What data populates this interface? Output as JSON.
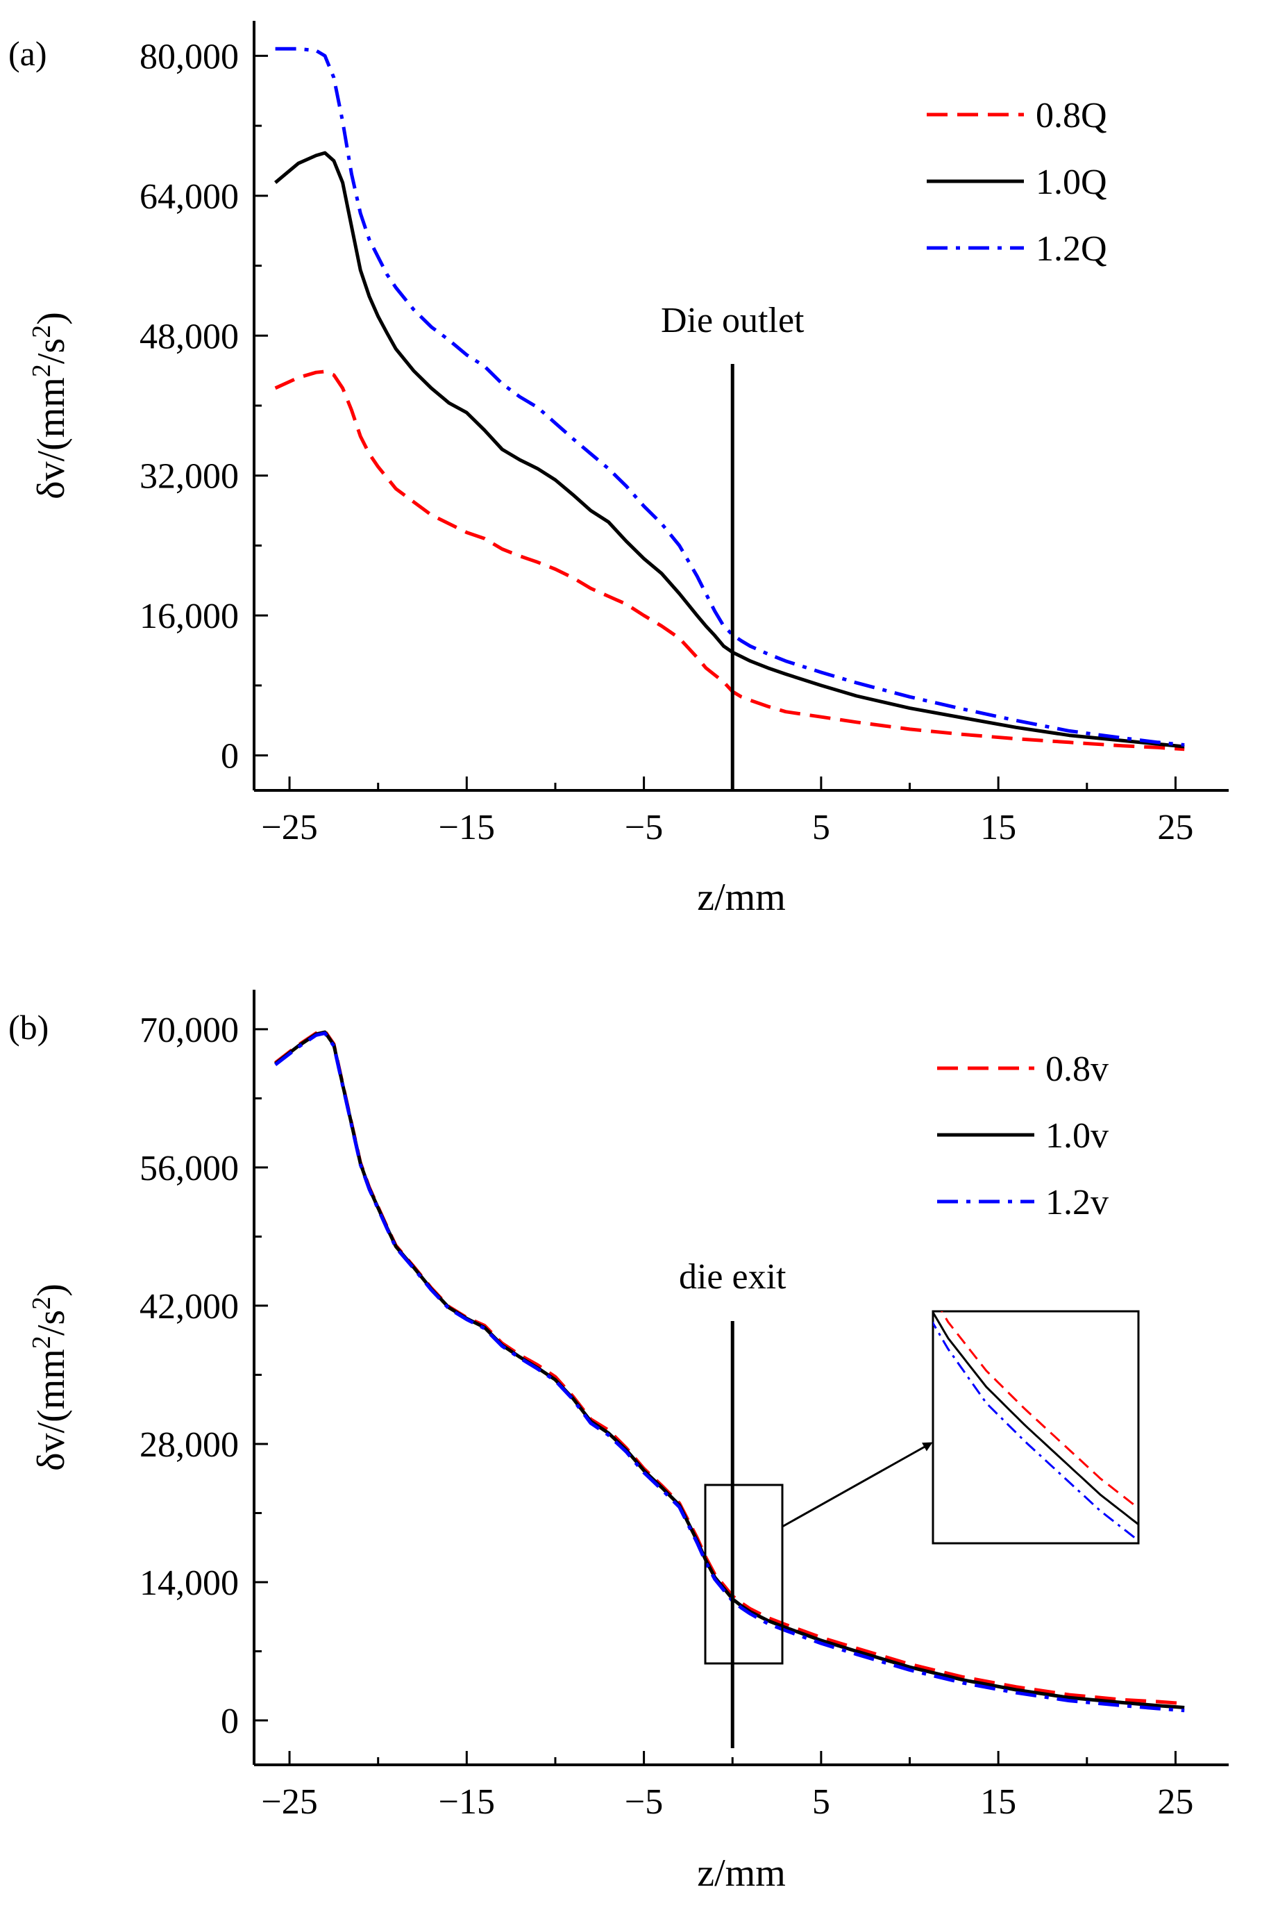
{
  "chart_data": [
    {
      "type": "line",
      "panel_label": "(a)",
      "xlabel": "z/mm",
      "ylabel": "δv/(mm²/s²)",
      "ylabel_parts": {
        "base": "δv/(mm",
        "sup1": "2",
        "mid": "/s",
        "sup2": "2",
        "end": ")"
      },
      "xlim": [
        -27,
        28
      ],
      "ylim": [
        -4000,
        84000
      ],
      "x_ticks": [
        -25,
        -15,
        -5,
        5,
        15,
        25
      ],
      "x_tick_labels": [
        "−25",
        "−15",
        "−5",
        "5",
        "15",
        "25"
      ],
      "y_ticks": [
        0,
        16000,
        32000,
        48000,
        64000,
        80000
      ],
      "y_tick_labels": [
        "0",
        "16,000",
        "32,000",
        "48,000",
        "64,000",
        "80,000"
      ],
      "legend_position": "top-right",
      "annotation": {
        "text": "Die outlet",
        "x": 0
      },
      "series": [
        {
          "name": "0.8Q",
          "color": "#ff0000",
          "dash": "dashed",
          "x": [
            -25.8,
            -24.5,
            -23.5,
            -23,
            -22.5,
            -22,
            -21.5,
            -21,
            -20.5,
            -20,
            -19,
            -18,
            -17,
            -16,
            -15,
            -14,
            -13,
            -12,
            -11,
            -10,
            -9,
            -8,
            -7,
            -6,
            -5,
            -4,
            -3,
            -2,
            -1.5,
            -1,
            -0.5,
            0,
            0.5,
            1,
            2,
            3,
            5,
            7,
            10,
            13,
            16,
            19,
            22,
            24,
            25.5
          ],
          "values": [
            42000,
            43200,
            43800,
            43900,
            43500,
            42000,
            39500,
            36500,
            34500,
            33000,
            30500,
            29000,
            27500,
            26500,
            25500,
            24800,
            23600,
            22800,
            22100,
            21300,
            20300,
            19100,
            18200,
            17300,
            16000,
            14800,
            13400,
            11200,
            10000,
            9200,
            8400,
            7300,
            6700,
            6300,
            5600,
            5000,
            4400,
            3800,
            3000,
            2400,
            1900,
            1500,
            1100,
            900,
            700
          ]
        },
        {
          "name": "1.0Q",
          "color": "#000000",
          "dash": "solid",
          "x": [
            -25.8,
            -24.5,
            -23.5,
            -23,
            -22.5,
            -22,
            -21.5,
            -21,
            -20.5,
            -20,
            -19.5,
            -19,
            -18,
            -17,
            -16,
            -15,
            -14,
            -13,
            -12,
            -11,
            -10,
            -9,
            -8,
            -7,
            -6,
            -5,
            -4,
            -3,
            -2,
            -1.5,
            -1,
            -0.5,
            0,
            0.5,
            1,
            2,
            3,
            5,
            7,
            10,
            13,
            16,
            19,
            22,
            24,
            25.5
          ],
          "values": [
            65500,
            67700,
            68600,
            68900,
            68000,
            65500,
            60500,
            55500,
            52500,
            50200,
            48300,
            46500,
            44000,
            42000,
            40300,
            39200,
            37200,
            35000,
            33800,
            32800,
            31500,
            29800,
            28000,
            26700,
            24500,
            22500,
            20800,
            18500,
            16000,
            14800,
            13700,
            12500,
            11800,
            11300,
            10800,
            10000,
            9300,
            8000,
            6800,
            5400,
            4300,
            3200,
            2300,
            1700,
            1300,
            1000
          ]
        },
        {
          "name": "1.2Q",
          "color": "#0000ff",
          "dash": "dashdot",
          "x": [
            -25.8,
            -24.5,
            -23.5,
            -23,
            -22.5,
            -22,
            -21.5,
            -21,
            -20.5,
            -20,
            -19.5,
            -19,
            -18,
            -17,
            -16,
            -15,
            -14,
            -13,
            -12,
            -11,
            -10,
            -9,
            -8,
            -7,
            -6,
            -5,
            -4,
            -3,
            -2,
            -1.5,
            -1,
            -0.5,
            0,
            0.5,
            1,
            2,
            3,
            5,
            7,
            10,
            13,
            16,
            19,
            22,
            24,
            25.5
          ],
          "values": [
            80800,
            80800,
            80600,
            80000,
            77500,
            72500,
            66500,
            62000,
            59000,
            57000,
            55000,
            53500,
            51000,
            49000,
            47500,
            45800,
            44500,
            42500,
            41000,
            39800,
            38000,
            36200,
            34500,
            32800,
            30800,
            28500,
            26500,
            24000,
            20500,
            18500,
            16500,
            14800,
            13800,
            13100,
            12500,
            11600,
            10800,
            9500,
            8300,
            6700,
            5300,
            4000,
            2800,
            2000,
            1500,
            1200
          ]
        }
      ]
    },
    {
      "type": "line",
      "panel_label": "(b)",
      "xlabel": "z/mm",
      "ylabel": "δv/(mm²/s²)",
      "ylabel_parts": {
        "base": "δv/(mm",
        "sup1": "2",
        "mid": "/s",
        "sup2": "2",
        "end": ")"
      },
      "xlim": [
        -27,
        28
      ],
      "ylim": [
        -4500,
        74000
      ],
      "x_ticks": [
        -25,
        -15,
        -5,
        5,
        15,
        25
      ],
      "x_tick_labels": [
        "−25",
        "−15",
        "−5",
        "5",
        "15",
        "25"
      ],
      "y_ticks": [
        0,
        14000,
        28000,
        42000,
        56000,
        70000
      ],
      "y_tick_labels": [
        "0",
        "14,000",
        "28,000",
        "42,000",
        "56,000",
        "70,000"
      ],
      "legend_position": "top-right",
      "annotation": {
        "text": "die exit",
        "x": 0
      },
      "series": [
        {
          "name": "0.8v",
          "color": "#ff0000",
          "dash": "dashed",
          "x": [
            -25.8,
            -24.5,
            -23.5,
            -23,
            -22.5,
            -22,
            -21.5,
            -21,
            -20.5,
            -20,
            -19.5,
            -19,
            -18,
            -17,
            -16,
            -15,
            -14,
            -13,
            -12,
            -11,
            -10,
            -9,
            -8,
            -7,
            -6,
            -5,
            -4,
            -3,
            -2,
            -1.5,
            -1,
            -0.5,
            0,
            0.5,
            1,
            2,
            3,
            5,
            7,
            10,
            13,
            16,
            19,
            22,
            24,
            25.5
          ],
          "values": [
            66600,
            68400,
            69600,
            69800,
            68500,
            64500,
            60500,
            56500,
            54000,
            52000,
            50000,
            48100,
            46000,
            43800,
            41900,
            40800,
            40000,
            38200,
            37000,
            36000,
            34800,
            32800,
            30500,
            29400,
            27600,
            25500,
            23800,
            22000,
            18500,
            16500,
            14800,
            13700,
            12600,
            11900,
            11300,
            10400,
            9700,
            8400,
            7300,
            5700,
            4400,
            3400,
            2600,
            2100,
            1900,
            1700
          ]
        },
        {
          "name": "1.0v",
          "color": "#000000",
          "dash": "solid",
          "x": [
            -25.8,
            -24.5,
            -23.5,
            -23,
            -22.5,
            -22,
            -21.5,
            -21,
            -20.5,
            -20,
            -19.5,
            -19,
            -18,
            -17,
            -16,
            -15,
            -14,
            -13,
            -12,
            -11,
            -10,
            -9,
            -8,
            -7,
            -6,
            -5,
            -4,
            -3,
            -2,
            -1.5,
            -1,
            -0.5,
            0,
            0.5,
            1,
            2,
            3,
            5,
            7,
            10,
            13,
            16,
            19,
            22,
            24,
            25.5
          ],
          "values": [
            66500,
            68300,
            69500,
            69700,
            68400,
            64400,
            60400,
            56400,
            53900,
            51900,
            49900,
            48000,
            45900,
            43700,
            41800,
            40700,
            39800,
            38000,
            36800,
            35700,
            34500,
            32600,
            30300,
            29100,
            27400,
            25300,
            23600,
            21800,
            18200,
            16200,
            14500,
            13400,
            12300,
            11600,
            11000,
            10100,
            9400,
            8100,
            7000,
            5400,
            4100,
            3100,
            2300,
            1800,
            1500,
            1300
          ]
        },
        {
          "name": "1.2v",
          "color": "#0000ff",
          "dash": "dashdot",
          "x": [
            -25.8,
            -24.5,
            -23.5,
            -23,
            -22.5,
            -22,
            -21.5,
            -21,
            -20.5,
            -20,
            -19.5,
            -19,
            -18,
            -17,
            -16,
            -15,
            -14,
            -13,
            -12,
            -11,
            -10,
            -9,
            -8,
            -7,
            -6,
            -5,
            -4,
            -3,
            -2,
            -1.5,
            -1,
            -0.5,
            0,
            0.5,
            1,
            2,
            3,
            5,
            7,
            10,
            13,
            16,
            19,
            22,
            24,
            25.5
          ],
          "values": [
            66400,
            68200,
            69400,
            69600,
            68300,
            64300,
            60300,
            56300,
            53800,
            51800,
            49800,
            47900,
            45800,
            43600,
            41700,
            40600,
            39700,
            37900,
            36700,
            35600,
            34400,
            32500,
            30100,
            28900,
            27200,
            25100,
            23400,
            21600,
            18000,
            16000,
            14300,
            13200,
            12100,
            11400,
            10800,
            9800,
            9100,
            7800,
            6700,
            5100,
            3800,
            2800,
            2000,
            1500,
            1200,
            1000
          ]
        }
      ]
    }
  ]
}
